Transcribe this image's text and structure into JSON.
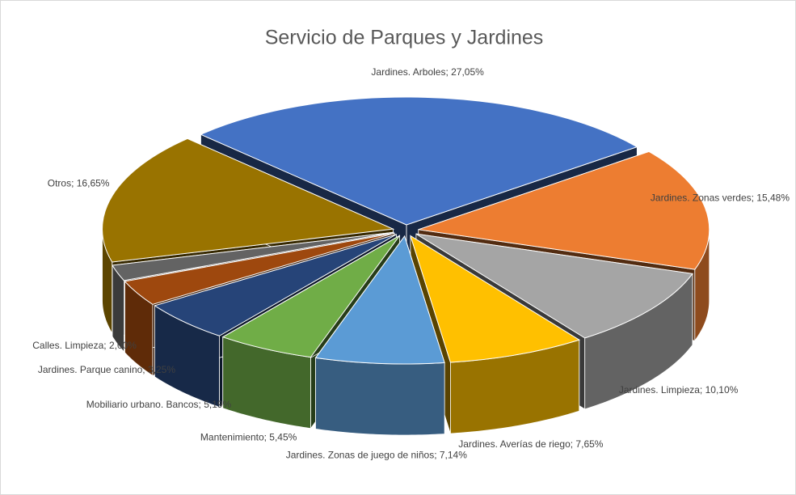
{
  "chart_data": {
    "type": "pie3d",
    "title": "Servicio de Parques y Jardines",
    "values": [
      27.05,
      15.48,
      10.1,
      7.65,
      7.14,
      5.45,
      5.19,
      3.25,
      2.0,
      16.65
    ],
    "value_labels": [
      "Jardines. Arboles; 27,05%",
      "Jardines. Zonas verdes; 15,48%",
      "Jardines. Limpieza; 10,10%",
      "Jardines. Averías de riego; 7,65%",
      "Jardines. Zonas de juego de niños; 7,14%",
      "Mantenimiento; 5,45%",
      "Mobiliario urbano. Bancos; 5,19%",
      "Jardines. Parque canino; 3,25%",
      "Calles. Limpieza; 2,00%",
      "Otros; 16,65%"
    ],
    "colors": [
      "#4472c4",
      "#ed7d31",
      "#a5a5a5",
      "#ffc000",
      "#5b9bd5",
      "#70ad47",
      "#264478",
      "#9e480e",
      "#636363",
      "#997300"
    ]
  }
}
